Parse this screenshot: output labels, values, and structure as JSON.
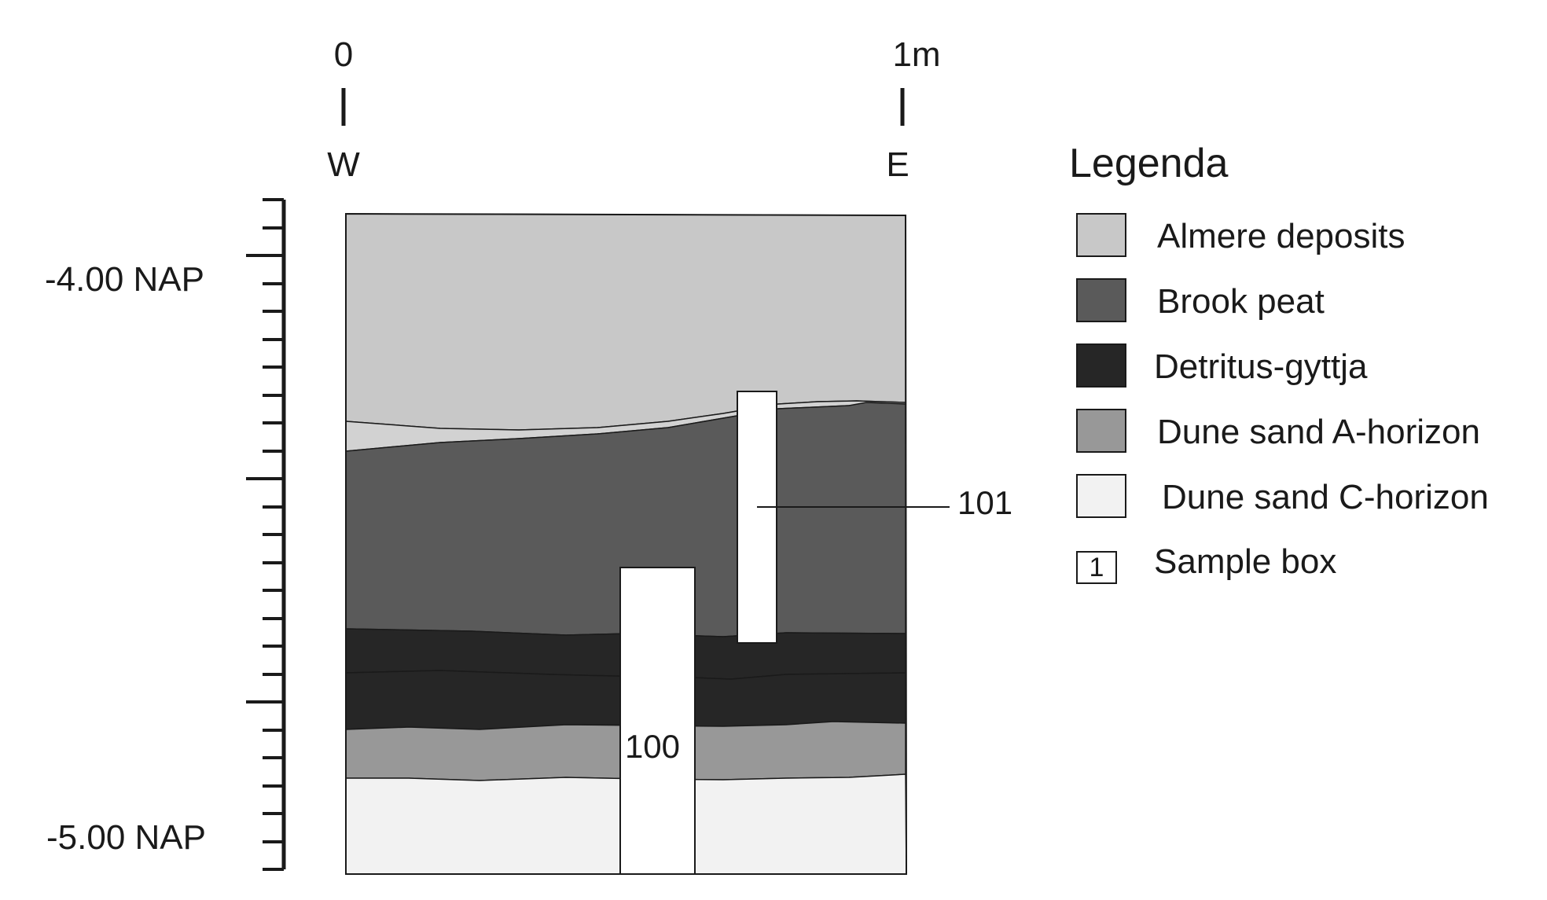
{
  "horizontal_scale": {
    "start_label": "0",
    "end_label": "1m",
    "west_label": "W",
    "east_label": "E"
  },
  "depth_scale": {
    "upper_label": "-4.00 NAP",
    "lower_label": "-5.00 NAP"
  },
  "section": {
    "layers": [
      {
        "key": "almere",
        "name": "Almere deposits",
        "color": "#c8c8c8"
      },
      {
        "key": "almere_band",
        "name": "Almere deposits",
        "color": "#d2d2d2"
      },
      {
        "key": "brook_peat",
        "name": "Brook peat",
        "color": "#5a5a5a"
      },
      {
        "key": "gyttja_upper",
        "name": "Detritus-gyttja",
        "color": "#262626"
      },
      {
        "key": "gyttja_lower",
        "name": "Detritus-gyttja",
        "color": "#262626"
      },
      {
        "key": "dune_a",
        "name": "Dune sand A-horizon",
        "color": "#989898"
      },
      {
        "key": "dune_c",
        "name": "Dune sand C-horizon",
        "color": "#f2f2f2"
      }
    ],
    "sample_boxes": [
      {
        "id": "sample-box-100",
        "label": "100"
      },
      {
        "id": "sample-box-101",
        "label": "101"
      }
    ]
  },
  "legend": {
    "title": "Legenda",
    "items": [
      {
        "label": "Almere deposits",
        "color": "#c8c8c8"
      },
      {
        "label": "Brook peat",
        "color": "#5a5a5a"
      },
      {
        "label": "Detritus-gyttja",
        "color": "#262626"
      },
      {
        "label": "Dune sand A-horizon",
        "color": "#989898"
      },
      {
        "label": "Dune sand C-horizon",
        "color": "#f2f2f2"
      }
    ],
    "sample_box": {
      "symbol": "1",
      "label": "Sample box"
    }
  }
}
